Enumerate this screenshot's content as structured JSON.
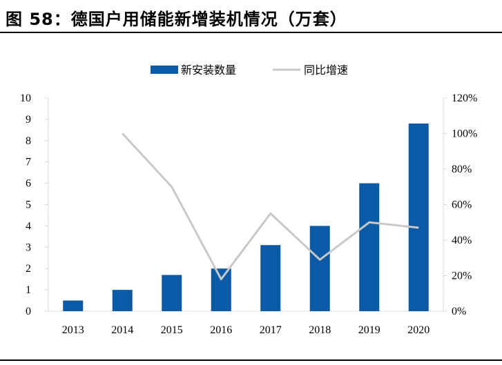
{
  "figure": {
    "title": "图 58：德国户用储能新增装机情况（万套）"
  },
  "chart_data": {
    "type": "bar",
    "title": "",
    "xlabel": "",
    "ylabel": "",
    "categories": [
      "2013",
      "2014",
      "2015",
      "2016",
      "2017",
      "2018",
      "2019",
      "2020"
    ],
    "series": [
      {
        "name": "新安装数量",
        "type": "bar",
        "axis": "left",
        "color": "#0b5aa8",
        "values": [
          0.5,
          1.0,
          1.7,
          2.0,
          3.1,
          4.0,
          6.0,
          8.8
        ]
      },
      {
        "name": "同比增速",
        "type": "line",
        "axis": "right",
        "color": "#c8c8c8",
        "values": [
          null,
          1.0,
          0.7,
          0.18,
          0.55,
          0.29,
          0.5,
          0.47
        ]
      }
    ],
    "ylim": [
      0,
      10
    ],
    "y_ticks": [
      "0",
      "1",
      "2",
      "3",
      "4",
      "5",
      "6",
      "7",
      "8",
      "9",
      "10"
    ],
    "y2lim": [
      0,
      1.2
    ],
    "y2_ticks": [
      "0%",
      "20%",
      "40%",
      "60%",
      "80%",
      "100%",
      "120%"
    ],
    "grid": false,
    "legend_position": "top-center"
  }
}
